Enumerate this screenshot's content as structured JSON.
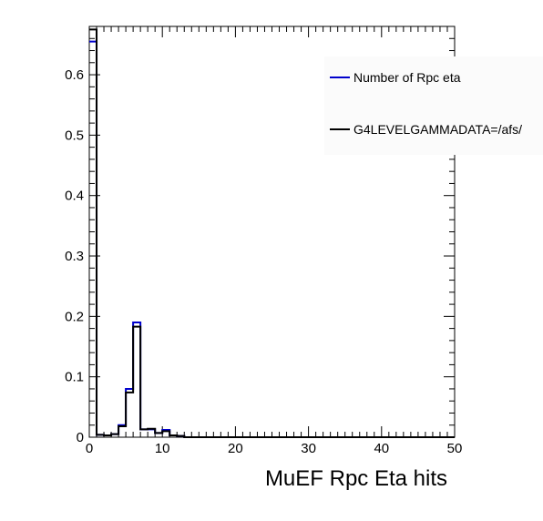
{
  "chart_data": {
    "type": "histogram",
    "title": "",
    "xlabel": "MuEF Rpc Eta hits",
    "ylabel": "",
    "xlim": [
      0,
      50
    ],
    "ylim": [
      0,
      0.68
    ],
    "bin_width": 1,
    "x_ticks": [
      0,
      10,
      20,
      30,
      40,
      50
    ],
    "y_ticks": [
      0,
      0.1,
      0.2,
      0.3,
      0.4,
      0.5,
      0.6
    ],
    "y_tick_labels": [
      "0",
      "0.1",
      "0.2",
      "0.3",
      "0.4",
      "0.5",
      "0.6"
    ],
    "grid": false,
    "legend_position": "top-right",
    "series": [
      {
        "name": "Number of Rpc eta",
        "color": "#0000cc",
        "values": [
          0.655,
          0.004,
          0.003,
          0.005,
          0.02,
          0.08,
          0.19,
          0.013,
          0.013,
          0.007,
          0.012,
          0.003,
          0.002,
          0,
          0,
          0,
          0,
          0,
          0,
          0,
          0,
          0,
          0,
          0,
          0,
          0,
          0,
          0,
          0,
          0,
          0,
          0,
          0,
          0,
          0,
          0,
          0,
          0,
          0,
          0,
          0,
          0,
          0,
          0,
          0,
          0,
          0,
          0,
          0,
          0
        ]
      },
      {
        "name": "G4LEVELGAMMADATA=/afs/",
        "color": "#000000",
        "values": [
          0.675,
          0.004,
          0.003,
          0.005,
          0.018,
          0.074,
          0.183,
          0.013,
          0.014,
          0.007,
          0.01,
          0.003,
          0.002,
          0,
          0,
          0,
          0,
          0,
          0,
          0,
          0,
          0,
          0,
          0,
          0,
          0,
          0,
          0,
          0,
          0,
          0,
          0,
          0,
          0,
          0,
          0,
          0,
          0,
          0,
          0,
          0,
          0,
          0,
          0,
          0,
          0,
          0,
          0,
          0,
          0
        ]
      }
    ]
  }
}
